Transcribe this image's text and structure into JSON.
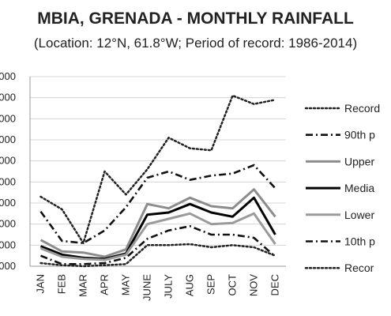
{
  "chart_data": {
    "type": "line",
    "title": "MBIA, GRENADA - MONTHLY RAINFALL",
    "subtitle": "(Location: 12°N, 61.8°W; Period of record: 1986-2014)",
    "categories": [
      "JAN",
      "FEB",
      "MAR",
      "APR",
      "MAY",
      "JUNE",
      "JULY",
      "AUG",
      "SEP",
      "OCT",
      "NOV",
      "DEC"
    ],
    "y_tick_labels": [
      "000",
      "000",
      "000",
      "000",
      "000",
      "000",
      "000",
      "000",
      "000",
      "000"
    ],
    "ylim": [
      0,
      9
    ],
    "grid": true,
    "legend_position": "right",
    "series": [
      {
        "name": "Record",
        "style": "dotted",
        "color": "#222222",
        "width": 2.5,
        "values": [
          3.3,
          2.7,
          1.1,
          4.5,
          3.4,
          4.6,
          6.1,
          5.6,
          5.5,
          8.1,
          7.7,
          7.9
        ]
      },
      {
        "name": "90th p",
        "style": "dashdot",
        "color": "#111111",
        "width": 2.6,
        "values": [
          2.6,
          1.2,
          1.1,
          1.7,
          2.8,
          4.2,
          4.5,
          4.1,
          4.3,
          4.4,
          4.8,
          3.7
        ]
      },
      {
        "name": "Upper",
        "style": "solid",
        "color": "#8c8c8c",
        "width": 3,
        "values": [
          1.25,
          0.7,
          0.65,
          0.45,
          0.8,
          2.95,
          2.75,
          3.25,
          2.85,
          2.75,
          3.65,
          2.35
        ]
      },
      {
        "name": "Media",
        "style": "solid",
        "color": "#000000",
        "width": 3,
        "values": [
          0.95,
          0.55,
          0.4,
          0.35,
          0.6,
          2.45,
          2.55,
          2.95,
          2.55,
          2.35,
          3.25,
          1.5
        ]
      },
      {
        "name": "Lower",
        "style": "solid",
        "color": "#9a9a9a",
        "width": 3,
        "values": [
          0.85,
          0.45,
          0.35,
          0.3,
          0.55,
          2.0,
          2.25,
          2.5,
          2.0,
          2.05,
          2.5,
          1.05
        ]
      },
      {
        "name": "10th p",
        "style": "dashdot",
        "color": "#111111",
        "width": 2.6,
        "values": [
          0.5,
          0.1,
          0.1,
          0.15,
          0.4,
          1.3,
          1.7,
          1.9,
          1.5,
          1.5,
          1.35,
          0.45
        ]
      },
      {
        "name": "Recor",
        "style": "dotted",
        "color": "#222222",
        "width": 2.5,
        "values": [
          0.15,
          0.05,
          0.0,
          0.05,
          0.1,
          1.0,
          1.0,
          1.05,
          0.9,
          1.0,
          0.9,
          0.5
        ]
      }
    ]
  }
}
